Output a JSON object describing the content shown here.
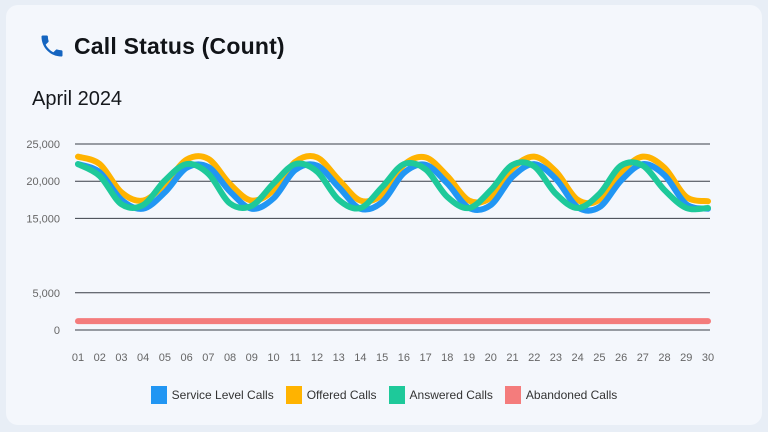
{
  "header": {
    "title": "Call Status (Count)",
    "icon": "phone-icon",
    "icon_color": "#1565c0"
  },
  "subtitle": "April 2024",
  "chart_data": {
    "type": "line",
    "title": "Call Status (Count)",
    "subtitle": "April 2024",
    "xlabel": "",
    "ylabel": "",
    "x": [
      "01",
      "02",
      "03",
      "04",
      "05",
      "06",
      "07",
      "08",
      "09",
      "10",
      "11",
      "12",
      "13",
      "14",
      "15",
      "16",
      "17",
      "18",
      "19",
      "20",
      "21",
      "22",
      "23",
      "24",
      "25",
      "26",
      "27",
      "28",
      "29",
      "30"
    ],
    "y_ticks": [
      {
        "value": 0,
        "label": "0"
      },
      {
        "value": 5000,
        "label": "5,000"
      },
      {
        "value": 15000,
        "label": "15,000"
      },
      {
        "value": 20000,
        "label": "20,000"
      },
      {
        "value": 25000,
        "label": "25,000"
      }
    ],
    "ylim": [
      0,
      25000
    ],
    "grid": true,
    "legend_position": "bottom",
    "series": [
      {
        "name": "Service Level Calls",
        "color": "#2196f3",
        "values": [
          22300,
          21200,
          17500,
          16300,
          18500,
          21800,
          21900,
          18600,
          16300,
          17700,
          21500,
          22100,
          19200,
          16300,
          17200,
          21100,
          22200,
          19700,
          16400,
          16800,
          20600,
          22300,
          20300,
          16500,
          16500,
          20100,
          22300,
          20800,
          16900,
          16300
        ]
      },
      {
        "name": "Offered Calls",
        "color": "#ffb300",
        "values": [
          23300,
          22300,
          18500,
          17400,
          19600,
          22900,
          23000,
          19600,
          17400,
          18800,
          22600,
          23200,
          20200,
          17400,
          18200,
          22200,
          23200,
          20700,
          17400,
          17800,
          21700,
          23300,
          21300,
          17500,
          17500,
          21200,
          23300,
          21800,
          17900,
          17300
        ]
      },
      {
        "name": "Answered Calls",
        "color": "#1ec99a",
        "values": [
          22300,
          20700,
          16900,
          16800,
          20100,
          22300,
          21000,
          17000,
          16700,
          19700,
          22300,
          21300,
          17500,
          16400,
          19200,
          22300,
          21600,
          17900,
          16400,
          18800,
          22200,
          22000,
          18300,
          16400,
          18300,
          22100,
          22100,
          18800,
          16400,
          16400
        ]
      },
      {
        "name": "Abandoned Calls",
        "color": "#f47c7c",
        "values": [
          1200,
          1200,
          1200,
          1200,
          1200,
          1200,
          1200,
          1200,
          1200,
          1200,
          1200,
          1200,
          1200,
          1200,
          1200,
          1200,
          1200,
          1200,
          1200,
          1200,
          1200,
          1200,
          1200,
          1200,
          1200,
          1200,
          1200,
          1200,
          1200,
          1200
        ]
      }
    ]
  }
}
